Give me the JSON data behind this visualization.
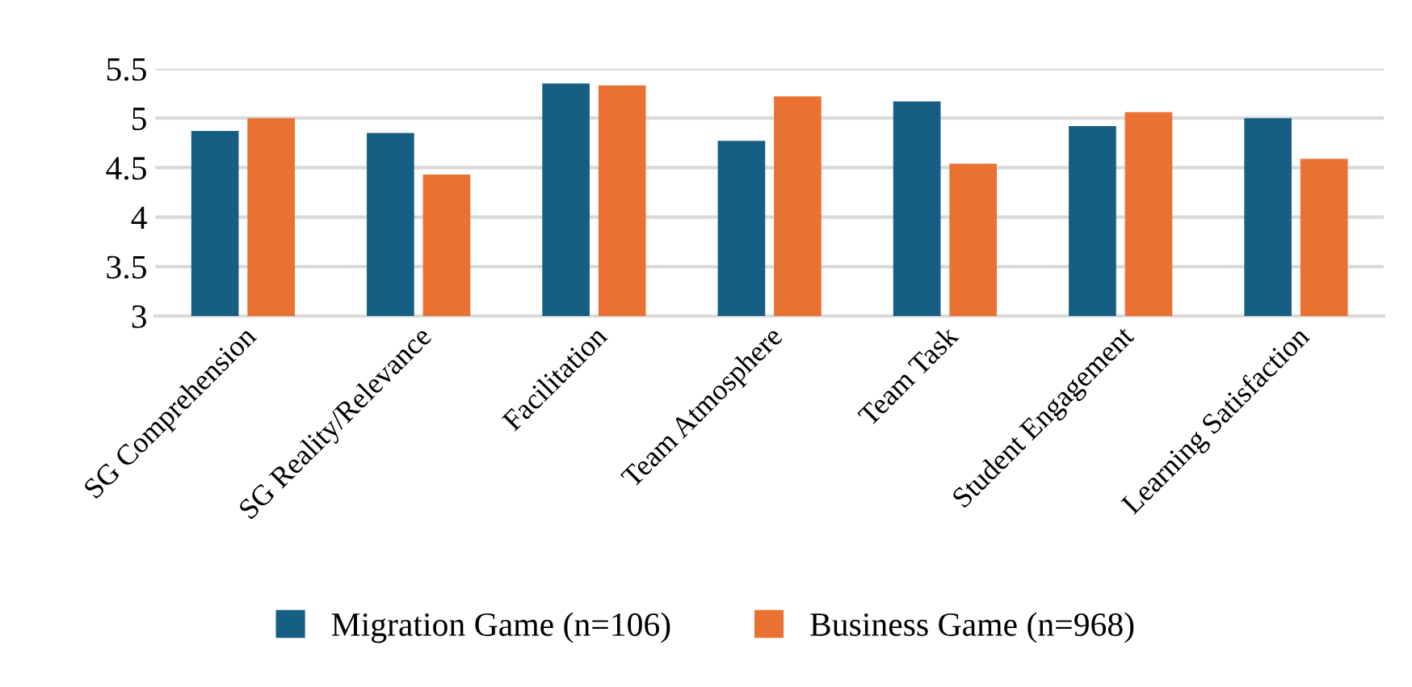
{
  "chart_data": {
    "type": "bar",
    "categories": [
      "SG Comprehension",
      "SG Reality/Relevance",
      "Facilitation",
      "Team Atmosphere",
      "Team Task",
      "Student Engagement",
      "Learning Satisfaction"
    ],
    "series": [
      {
        "name": "Migration Game (n=106)",
        "color": "#175f82",
        "values": [
          4.87,
          4.85,
          5.35,
          4.77,
          5.17,
          4.92,
          5.0
        ]
      },
      {
        "name": "Business Game (n=968)",
        "color": "#e97132",
        "values": [
          5.0,
          4.43,
          5.33,
          5.22,
          4.54,
          5.06,
          4.59
        ]
      }
    ],
    "ylim": [
      3,
      5.5
    ],
    "yticks": [
      3,
      3.5,
      4,
      4.5,
      5,
      5.5
    ],
    "grid": "y",
    "legend": "bottom"
  }
}
